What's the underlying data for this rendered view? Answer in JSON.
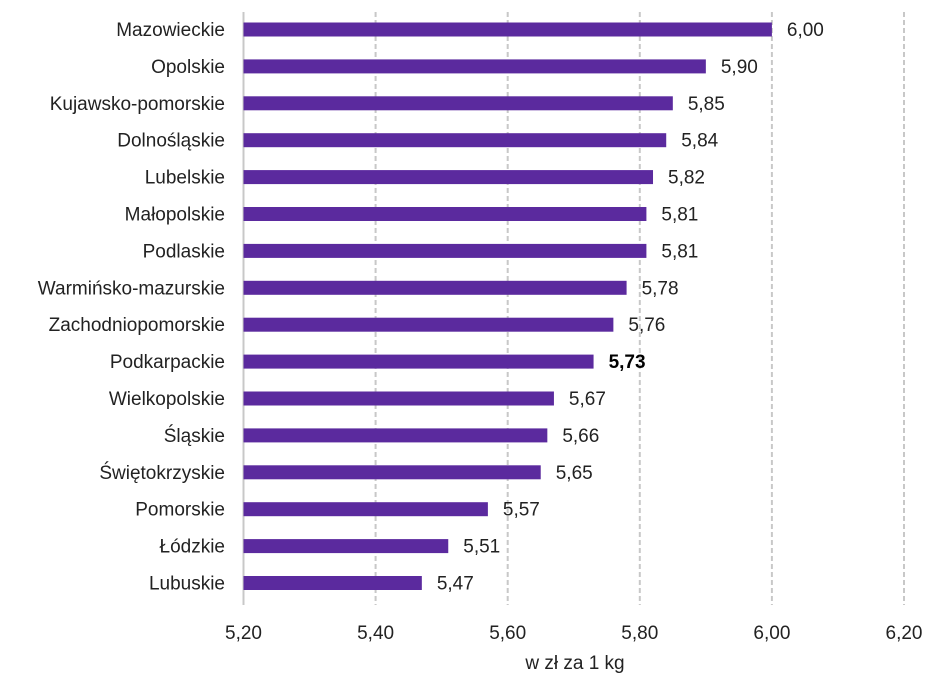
{
  "chart_data": {
    "type": "bar",
    "orientation": "horizontal",
    "categories": [
      "Mazowieckie",
      "Opolskie",
      "Kujawsko-pomorskie",
      "Dolnośląskie",
      "Lubelskie",
      "Małopolskie",
      "Podlaskie",
      "Warmińsko-mazurskie",
      "Zachodniopomorskie",
      "Podkarpackie",
      "Wielkopolskie",
      "Śląskie",
      "Świętokrzyskie",
      "Pomorskie",
      "Łódzkie",
      "Lubuskie"
    ],
    "values": [
      6.0,
      5.9,
      5.85,
      5.84,
      5.82,
      5.81,
      5.81,
      5.78,
      5.76,
      5.73,
      5.67,
      5.66,
      5.65,
      5.57,
      5.51,
      5.47
    ],
    "value_labels": [
      "6,00",
      "5,90",
      "5,85",
      "5,84",
      "5,82",
      "5,81",
      "5,81",
      "5,78",
      "5,76",
      "5,73",
      "5,67",
      "5,66",
      "5,65",
      "5,57",
      "5,51",
      "5,47"
    ],
    "highlighted_category": "Podkarpackie",
    "xlim": [
      5.2,
      6.2
    ],
    "x_ticks": [
      5.2,
      5.4,
      5.6,
      5.8,
      6.0,
      6.2
    ],
    "x_tick_labels": [
      "5,20",
      "5,40",
      "5,60",
      "5,80",
      "6,00",
      "6,20"
    ],
    "xlabel": "w zł za 1 kg",
    "ylabel": "",
    "title": "",
    "grid": "vertical dashed",
    "legend": "none",
    "colors": {
      "bar": "#5b2a9e",
      "grid": "#c8c8c8",
      "text": "#222222"
    }
  }
}
